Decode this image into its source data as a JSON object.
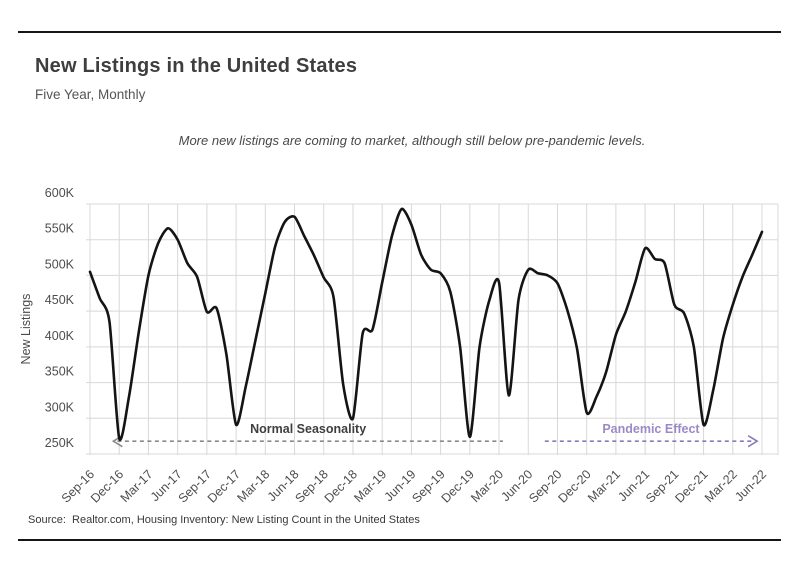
{
  "header": {
    "title": "New Listings in the United States",
    "subtitle": "Five Year, Monthly"
  },
  "annotation": "More new listings are coming to market, although still below pre-pandemic levels.",
  "source": "Source:  Realtor.com, Housing Inventory: New Listing Count in the United States",
  "colors": {
    "line": "#141414",
    "grid": "#d8d8d8",
    "title_text": "#3e3e3e",
    "tick_text": "#4d4d4d",
    "normal_seasonality_text": "#3f3f3f",
    "normal_seasonality_arrow": "#8a8a8a",
    "pandemic_effect_text": "#9c8ac6",
    "pandemic_effect_arrow": "#8b79b8",
    "rule": "#161616"
  },
  "chart_data": {
    "type": "line",
    "title": "New Listings in the United States",
    "subtitle": "Five Year, Monthly",
    "xlabel": "",
    "ylabel": "New Listings",
    "unit": "thousands (K)",
    "ylim": [
      250,
      600
    ],
    "grid": true,
    "legend": "none",
    "line_color": "#141414",
    "y_ticks": [
      250,
      300,
      350,
      400,
      450,
      500,
      550,
      600
    ],
    "y_tick_labels": [
      "250K",
      "300K",
      "350K",
      "400K",
      "450K",
      "500K",
      "550K",
      "600K"
    ],
    "x_tick_every": 3,
    "x": [
      "Sep-16",
      "Oct-16",
      "Nov-16",
      "Dec-16",
      "Jan-17",
      "Feb-17",
      "Mar-17",
      "Apr-17",
      "May-17",
      "Jun-17",
      "Jul-17",
      "Aug-17",
      "Sep-17",
      "Oct-17",
      "Nov-17",
      "Dec-17",
      "Jan-18",
      "Feb-18",
      "Mar-18",
      "Apr-18",
      "May-18",
      "Jun-18",
      "Jul-18",
      "Aug-18",
      "Sep-18",
      "Oct-18",
      "Nov-18",
      "Dec-18",
      "Jan-19",
      "Feb-19",
      "Mar-19",
      "Apr-19",
      "May-19",
      "Jun-19",
      "Jul-19",
      "Aug-19",
      "Sep-19",
      "Oct-19",
      "Nov-19",
      "Dec-19",
      "Jan-20",
      "Feb-20",
      "Mar-20",
      "Apr-20",
      "May-20",
      "Jun-20",
      "Jul-20",
      "Aug-20",
      "Sep-20",
      "Oct-20",
      "Nov-20",
      "Dec-20",
      "Jan-21",
      "Feb-21",
      "Mar-21",
      "Apr-21",
      "May-21",
      "Jun-21",
      "Jul-21",
      "Aug-21",
      "Sep-21",
      "Oct-21",
      "Nov-21",
      "Dec-21",
      "Jan-22",
      "Feb-22",
      "Mar-22",
      "Apr-22",
      "May-22",
      "Jun-22"
    ],
    "values": [
      505,
      468,
      435,
      272,
      330,
      420,
      500,
      545,
      566,
      550,
      517,
      498,
      449,
      454,
      390,
      291,
      345,
      410,
      475,
      540,
      575,
      582,
      555,
      528,
      497,
      470,
      347,
      300,
      419,
      424,
      490,
      555,
      593,
      571,
      529,
      508,
      503,
      477,
      400,
      274,
      400,
      465,
      490,
      332,
      466,
      508,
      503,
      500,
      489,
      452,
      398,
      308,
      330,
      365,
      417,
      449,
      491,
      538,
      523,
      517,
      459,
      447,
      400,
      291,
      340,
      412,
      459,
      498,
      529,
      561
    ],
    "annotations": [
      {
        "label": "Normal Seasonality",
        "direction": "left",
        "y": 268,
        "x_from": 2.4,
        "x_to": 42.4,
        "color": "#3f3f3f",
        "arrow_color": "#8a8a8a"
      },
      {
        "label": "Pandemic Effect",
        "direction": "right",
        "y": 268,
        "x_from": 46.7,
        "x_to": 68.5,
        "color": "#9c8ac6",
        "arrow_color": "#8b79b8"
      }
    ]
  }
}
